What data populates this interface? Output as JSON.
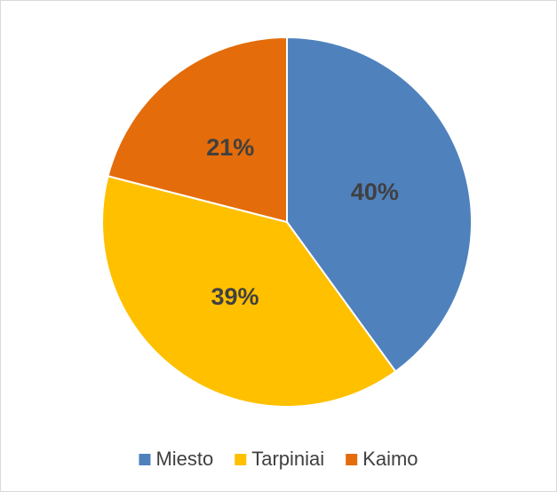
{
  "chart_data": {
    "type": "pie",
    "categories": [
      "Miesto",
      "Tarpiniai",
      "Kaimo"
    ],
    "values": [
      40,
      39,
      21
    ],
    "value_labels": [
      "40%",
      "39%",
      "21%"
    ],
    "colors": [
      "#4f81bd",
      "#ffc000",
      "#e46c0a"
    ],
    "legend": "bottom"
  }
}
